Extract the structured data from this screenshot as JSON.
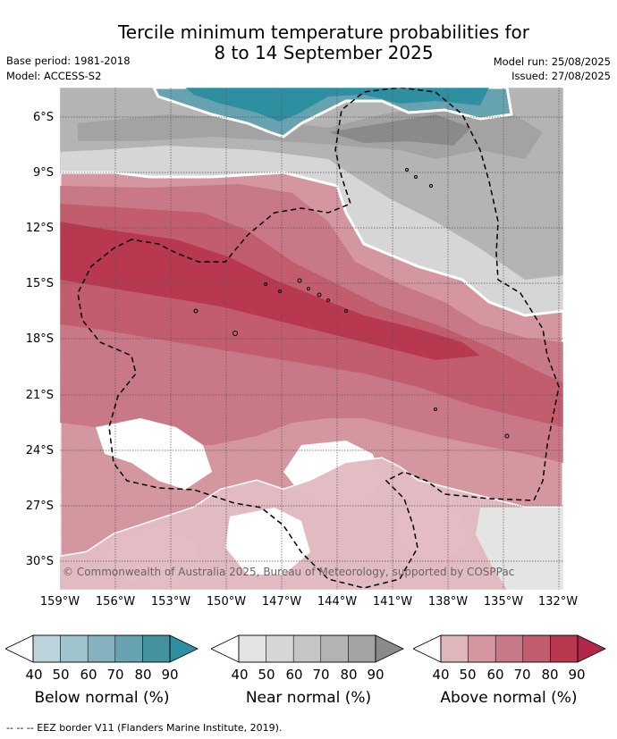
{
  "title_line1": "Tercile minimum temperature probabilities for",
  "title_line2": "8 to 14 September 2025",
  "base_period": "Base period: 1981-2018",
  "model": "Model: ACCESS-S2",
  "model_run": "Model run: 25/08/2025",
  "issued": "Issued: 27/08/2025",
  "lat_labels": [
    "6°S",
    "9°S",
    "12°S",
    "15°S",
    "18°S",
    "21°S",
    "24°S",
    "27°S",
    "30°S"
  ],
  "lon_labels": [
    "159°W",
    "156°W",
    "153°W",
    "150°W",
    "147°W",
    "144°W",
    "141°W",
    "138°W",
    "135°W",
    "132°W"
  ],
  "copyright": "© Commonwealth of Australia 2025, Bureau of Meteorology, supported by COSPPac",
  "legend": {
    "ticks": [
      "40",
      "50",
      "60",
      "70",
      "80",
      "90"
    ],
    "below_label": "Below normal (%)",
    "near_label": "Near normal (%)",
    "above_label": "Above normal (%)",
    "below_colors": [
      "#bcd5dc",
      "#a0c4cd",
      "#84b3bf",
      "#66a2b0",
      "#45929f",
      "#2e8fa0"
    ],
    "near_colors": [
      "#e4e4e4",
      "#d6d6d6",
      "#c5c5c5",
      "#b4b4b4",
      "#a3a3a3",
      "#8a8a8a"
    ],
    "above_colors": [
      "#e0b6bd",
      "#d4969f",
      "#c87886",
      "#c25d6e",
      "#b8394f",
      "#b3284a"
    ]
  },
  "footer": "--  --  -- EEZ border V11 (Flanders Marine Institute, 2019)."
}
